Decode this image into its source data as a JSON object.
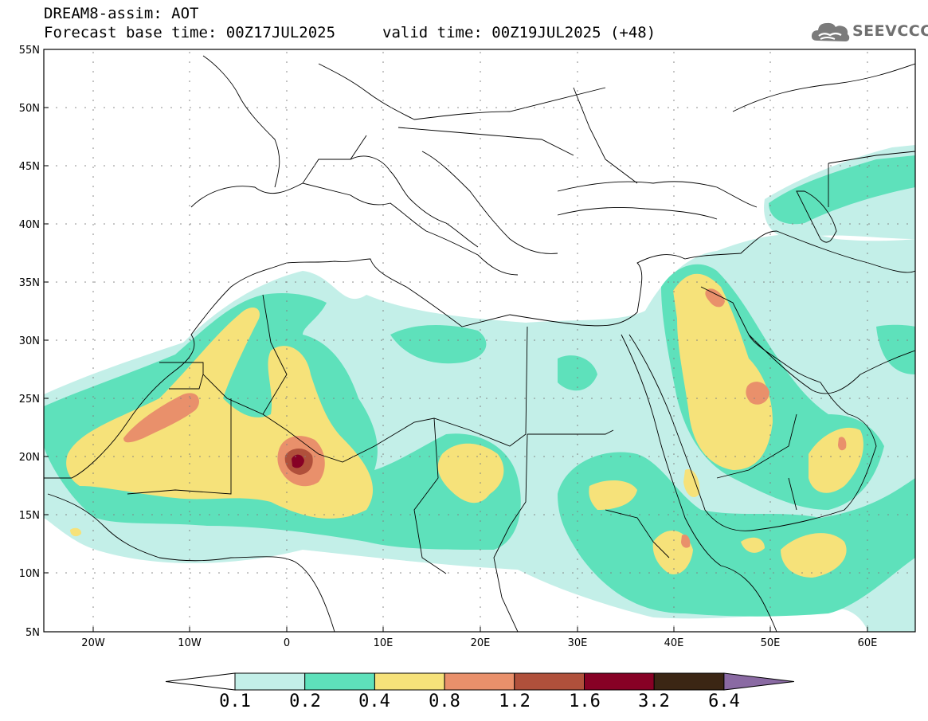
{
  "header": {
    "title_line1": "DREAM8-assim: AOT",
    "base_time": "Forecast base time: 00Z17JUL2025",
    "valid_time": "valid time: 00Z19JUL2025 (+48)"
  },
  "logo": {
    "text": "SEEVCCC"
  },
  "axes": {
    "lat_labels": [
      "55N",
      "50N",
      "45N",
      "40N",
      "35N",
      "30N",
      "25N",
      "20N",
      "15N",
      "10N",
      "5N"
    ],
    "lon_labels": [
      "20W",
      "10W",
      "0",
      "10E",
      "20E",
      "30E",
      "40E",
      "50E",
      "60E"
    ]
  },
  "colorbar": {
    "labels": [
      "0.1",
      "0.2",
      "0.4",
      "0.8",
      "1.2",
      "1.6",
      "3.2",
      "6.4"
    ],
    "colors": [
      "#ffffff",
      "#c3efe8",
      "#5ee1bb",
      "#f6e27a",
      "#e9906b",
      "#b0503b",
      "#870125",
      "#3b2614",
      "#8a6aa3"
    ]
  }
}
